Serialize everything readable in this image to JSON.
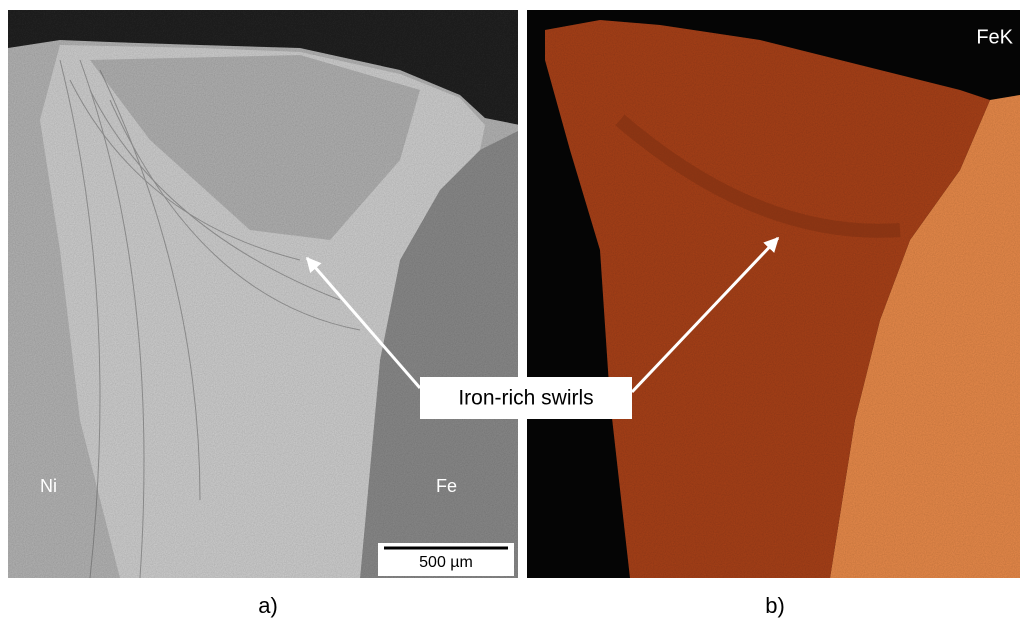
{
  "panel_a": {
    "caption": "a)",
    "left_label": "Ni",
    "right_label": "Fe",
    "scale_bar": "500 µm"
  },
  "panel_b": {
    "caption": "b)",
    "element_label": "FeK"
  },
  "annotation": "Iron-rich swirls"
}
